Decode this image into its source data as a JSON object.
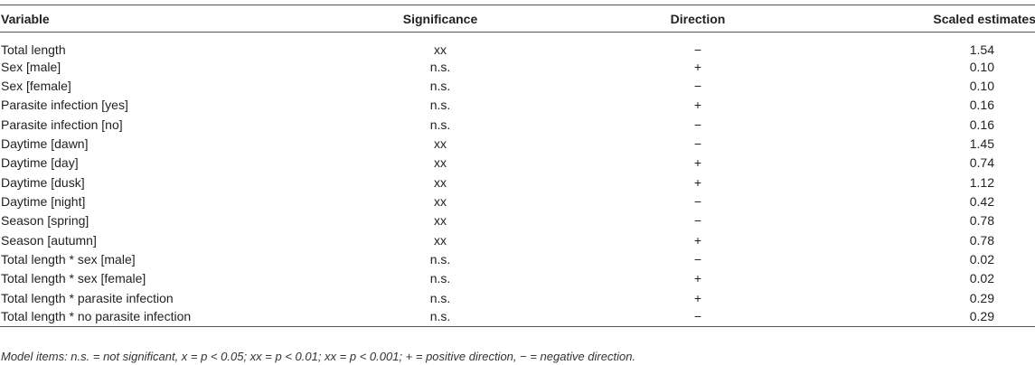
{
  "table": {
    "header": [
      "Variable",
      "Significance",
      "Direction",
      "Scaled estimates"
    ],
    "rows": [
      [
        "Total length",
        "xx",
        "−",
        "1.54"
      ],
      [
        "Sex [male]",
        "n.s.",
        "+",
        "0.10"
      ],
      [
        "Sex [female]",
        "n.s.",
        "−",
        "0.10"
      ],
      [
        "Parasite infection [yes]",
        "n.s.",
        "+",
        "0.16"
      ],
      [
        "Parasite infection [no]",
        "n.s.",
        "−",
        "0.16"
      ],
      [
        "Daytime [dawn]",
        "xx",
        "−",
        "1.45"
      ],
      [
        "Daytime [day]",
        "xx",
        "+",
        "0.74"
      ],
      [
        "Daytime [dusk]",
        "xx",
        "+",
        "1.12"
      ],
      [
        "Daytime [night]",
        "xx",
        "−",
        "0.42"
      ],
      [
        "Season [spring]",
        "xx",
        "−",
        "0.78"
      ],
      [
        "Season [autumn]",
        "xx",
        "+",
        "0.78"
      ],
      [
        "Total length * sex [male]",
        "n.s.",
        "−",
        "0.02"
      ],
      [
        "Total length * sex [female]",
        "n.s.",
        "+",
        "0.02"
      ],
      [
        "Total length * parasite infection",
        "n.s.",
        "+",
        "0.29"
      ],
      [
        "Total length * no parasite infection",
        "n.s.",
        "−",
        "0.29"
      ]
    ],
    "footnote": "Model items: n.s. = not significant, x = p < 0.05; xx = p < 0.01; xx = p < 0.001; + = positive direction, − = negative direction."
  }
}
